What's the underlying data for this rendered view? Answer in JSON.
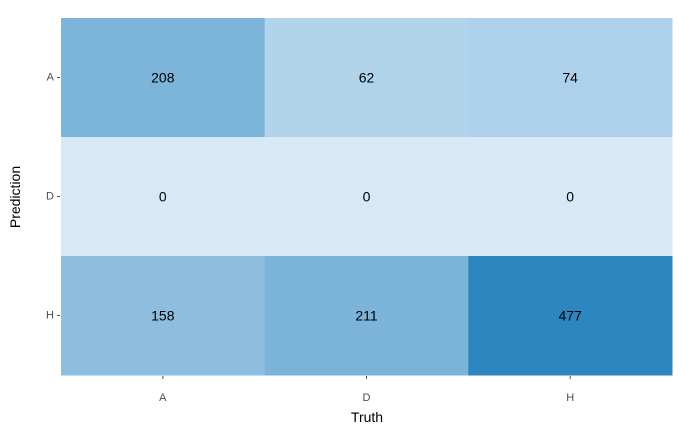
{
  "chart_data": {
    "type": "heatmap",
    "xlabel": "Truth",
    "ylabel": "Prediction",
    "x_categories": [
      "A",
      "D",
      "H"
    ],
    "y_categories": [
      "A",
      "D",
      "H"
    ],
    "values": [
      [
        208,
        62,
        74
      ],
      [
        0,
        0,
        0
      ],
      [
        158,
        211,
        477
      ]
    ],
    "color_low": "#d7e9f7",
    "color_high": "#2e86c1",
    "grid": false,
    "legend": "none"
  }
}
